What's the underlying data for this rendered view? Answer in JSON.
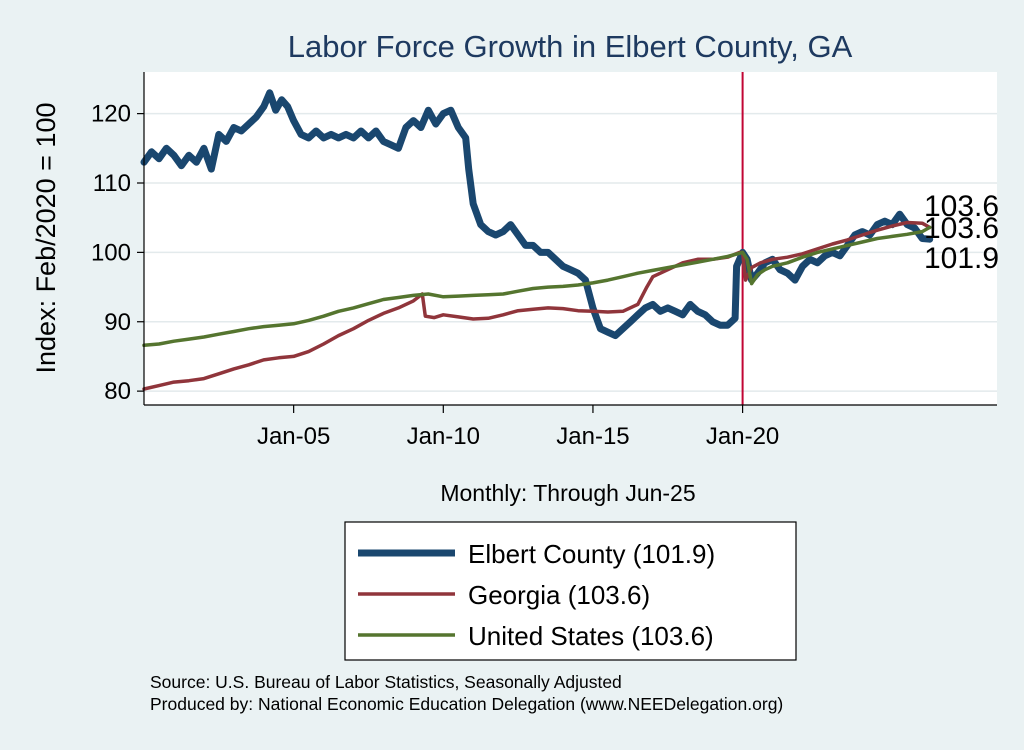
{
  "chart_data": {
    "type": "line",
    "title": "Labor Force Growth in Elbert  County, GA",
    "ylabel": "Index: Feb/2020 = 100",
    "xlabel": "Monthly: Through Jun-25",
    "ylim": [
      78,
      126
    ],
    "xlim": [
      2000.0,
      2028.5
    ],
    "yticks": [
      80,
      90,
      100,
      110,
      120
    ],
    "xticks": [
      {
        "label": "Jan-05",
        "value": 2005.0
      },
      {
        "label": "Jan-10",
        "value": 2010.0
      },
      {
        "label": "Jan-15",
        "value": 2015.0
      },
      {
        "label": "Jan-20",
        "value": 2020.0
      }
    ],
    "vline": 2020.0,
    "grid": "horizontal",
    "legend_position": "bottom",
    "series": [
      {
        "name": "Elbert  County (101.9)",
        "color": "#1a476f",
        "width": 7,
        "end_label": "101.9",
        "points": [
          [
            2000.0,
            113
          ],
          [
            2000.25,
            114.5
          ],
          [
            2000.5,
            113.5
          ],
          [
            2000.75,
            115
          ],
          [
            2001.0,
            114
          ],
          [
            2001.25,
            112.5
          ],
          [
            2001.5,
            114
          ],
          [
            2001.75,
            113
          ],
          [
            2002.0,
            115
          ],
          [
            2002.25,
            112
          ],
          [
            2002.5,
            117
          ],
          [
            2002.75,
            116
          ],
          [
            2003.0,
            118
          ],
          [
            2003.25,
            117.5
          ],
          [
            2003.5,
            118.5
          ],
          [
            2003.75,
            119.5
          ],
          [
            2004.0,
            121
          ],
          [
            2004.2,
            123
          ],
          [
            2004.4,
            120.5
          ],
          [
            2004.6,
            122
          ],
          [
            2004.8,
            121
          ],
          [
            2005.0,
            119
          ],
          [
            2005.25,
            117
          ],
          [
            2005.5,
            116.5
          ],
          [
            2005.75,
            117.5
          ],
          [
            2006.0,
            116.5
          ],
          [
            2006.25,
            117
          ],
          [
            2006.5,
            116.5
          ],
          [
            2006.75,
            117
          ],
          [
            2007.0,
            116.5
          ],
          [
            2007.25,
            117.5
          ],
          [
            2007.5,
            116.5
          ],
          [
            2007.75,
            117.5
          ],
          [
            2008.0,
            116
          ],
          [
            2008.25,
            115.5
          ],
          [
            2008.5,
            115
          ],
          [
            2008.75,
            118
          ],
          [
            2009.0,
            119
          ],
          [
            2009.25,
            118
          ],
          [
            2009.5,
            120.5
          ],
          [
            2009.75,
            118.5
          ],
          [
            2010.0,
            120
          ],
          [
            2010.25,
            120.5
          ],
          [
            2010.5,
            118
          ],
          [
            2010.75,
            116.5
          ],
          [
            2010.85,
            112
          ],
          [
            2011.0,
            107
          ],
          [
            2011.25,
            104
          ],
          [
            2011.5,
            103
          ],
          [
            2011.75,
            102.5
          ],
          [
            2012.0,
            103
          ],
          [
            2012.25,
            104
          ],
          [
            2012.5,
            102.5
          ],
          [
            2012.75,
            101
          ],
          [
            2013.0,
            101
          ],
          [
            2013.25,
            100
          ],
          [
            2013.5,
            100
          ],
          [
            2013.75,
            99
          ],
          [
            2014.0,
            98
          ],
          [
            2014.25,
            97.5
          ],
          [
            2014.5,
            97
          ],
          [
            2014.75,
            96
          ],
          [
            2015.0,
            92
          ],
          [
            2015.25,
            89
          ],
          [
            2015.5,
            88.5
          ],
          [
            2015.75,
            88
          ],
          [
            2016.0,
            89
          ],
          [
            2016.25,
            90
          ],
          [
            2016.5,
            91
          ],
          [
            2016.75,
            92
          ],
          [
            2017.0,
            92.5
          ],
          [
            2017.25,
            91.5
          ],
          [
            2017.5,
            92
          ],
          [
            2017.75,
            91.5
          ],
          [
            2018.0,
            91
          ],
          [
            2018.25,
            92.5
          ],
          [
            2018.5,
            91.5
          ],
          [
            2018.75,
            91
          ],
          [
            2019.0,
            90
          ],
          [
            2019.25,
            89.5
          ],
          [
            2019.5,
            89.5
          ],
          [
            2019.75,
            90.5
          ],
          [
            2019.8,
            98
          ],
          [
            2020.0,
            100
          ],
          [
            2020.15,
            99
          ],
          [
            2020.3,
            96
          ],
          [
            2020.5,
            97
          ],
          [
            2020.75,
            98.5
          ],
          [
            2021.0,
            99
          ],
          [
            2021.25,
            97.5
          ],
          [
            2021.5,
            97
          ],
          [
            2021.75,
            96
          ],
          [
            2022.0,
            98
          ],
          [
            2022.25,
            99
          ],
          [
            2022.5,
            98.5
          ],
          [
            2022.75,
            99.5
          ],
          [
            2023.0,
            100
          ],
          [
            2023.25,
            99.5
          ],
          [
            2023.5,
            101
          ],
          [
            2023.75,
            102.5
          ],
          [
            2024.0,
            103
          ],
          [
            2024.25,
            102.5
          ],
          [
            2024.5,
            104
          ],
          [
            2024.75,
            104.5
          ],
          [
            2025.0,
            104
          ],
          [
            2025.25,
            105.5
          ],
          [
            2025.5,
            104
          ],
          [
            2025.75,
            103.5
          ],
          [
            2026.0,
            102
          ],
          [
            2026.25,
            101.9
          ]
        ]
      },
      {
        "name": "Georgia (103.6)",
        "color": "#90353b",
        "width": 3.5,
        "end_label": "103.6",
        "points": [
          [
            2000.0,
            80.3
          ],
          [
            2000.5,
            80.8
          ],
          [
            2001.0,
            81.3
          ],
          [
            2001.5,
            81.5
          ],
          [
            2002.0,
            81.8
          ],
          [
            2002.5,
            82.5
          ],
          [
            2003.0,
            83.2
          ],
          [
            2003.5,
            83.8
          ],
          [
            2004.0,
            84.5
          ],
          [
            2004.5,
            84.8
          ],
          [
            2005.0,
            85.0
          ],
          [
            2005.5,
            85.7
          ],
          [
            2006.0,
            86.8
          ],
          [
            2006.5,
            88.0
          ],
          [
            2007.0,
            89.0
          ],
          [
            2007.5,
            90.2
          ],
          [
            2008.0,
            91.2
          ],
          [
            2008.5,
            92.0
          ],
          [
            2009.0,
            93.0
          ],
          [
            2009.3,
            94.0
          ],
          [
            2009.4,
            90.8
          ],
          [
            2009.7,
            90.6
          ],
          [
            2010.0,
            91.0
          ],
          [
            2010.5,
            90.7
          ],
          [
            2011.0,
            90.4
          ],
          [
            2011.5,
            90.5
          ],
          [
            2012.0,
            91.0
          ],
          [
            2012.5,
            91.6
          ],
          [
            2013.0,
            91.8
          ],
          [
            2013.5,
            92.0
          ],
          [
            2014.0,
            91.9
          ],
          [
            2014.5,
            91.6
          ],
          [
            2015.0,
            91.5
          ],
          [
            2015.5,
            91.4
          ],
          [
            2016.0,
            91.5
          ],
          [
            2016.5,
            92.5
          ],
          [
            2016.8,
            95.0
          ],
          [
            2017.0,
            96.5
          ],
          [
            2017.5,
            97.5
          ],
          [
            2018.0,
            98.5
          ],
          [
            2018.5,
            99.0
          ],
          [
            2019.0,
            99.0
          ],
          [
            2019.5,
            99.3
          ],
          [
            2019.9,
            100.0
          ],
          [
            2020.0,
            100.0
          ],
          [
            2020.1,
            96.0
          ],
          [
            2020.3,
            97.8
          ],
          [
            2020.6,
            98.5
          ],
          [
            2021.0,
            99.0
          ],
          [
            2021.5,
            99.3
          ],
          [
            2022.0,
            99.8
          ],
          [
            2022.5,
            100.5
          ],
          [
            2023.0,
            101.2
          ],
          [
            2023.5,
            101.8
          ],
          [
            2024.0,
            102.5
          ],
          [
            2024.5,
            103.2
          ],
          [
            2025.0,
            103.8
          ],
          [
            2025.5,
            104.3
          ],
          [
            2026.0,
            104.2
          ],
          [
            2026.25,
            103.6
          ]
        ]
      },
      {
        "name": "United States (103.6)",
        "color": "#55752f",
        "width": 3.5,
        "end_label": "103.6",
        "points": [
          [
            2000.0,
            86.6
          ],
          [
            2000.5,
            86.8
          ],
          [
            2001.0,
            87.2
          ],
          [
            2001.5,
            87.5
          ],
          [
            2002.0,
            87.8
          ],
          [
            2002.5,
            88.2
          ],
          [
            2003.0,
            88.6
          ],
          [
            2003.5,
            89.0
          ],
          [
            2004.0,
            89.3
          ],
          [
            2004.5,
            89.5
          ],
          [
            2005.0,
            89.7
          ],
          [
            2005.5,
            90.2
          ],
          [
            2006.0,
            90.8
          ],
          [
            2006.5,
            91.5
          ],
          [
            2007.0,
            92.0
          ],
          [
            2007.5,
            92.6
          ],
          [
            2008.0,
            93.2
          ],
          [
            2008.5,
            93.5
          ],
          [
            2009.0,
            93.8
          ],
          [
            2009.5,
            94.0
          ],
          [
            2010.0,
            93.6
          ],
          [
            2010.5,
            93.7
          ],
          [
            2011.0,
            93.8
          ],
          [
            2011.5,
            93.9
          ],
          [
            2012.0,
            94.0
          ],
          [
            2012.5,
            94.4
          ],
          [
            2013.0,
            94.8
          ],
          [
            2013.5,
            95.0
          ],
          [
            2014.0,
            95.1
          ],
          [
            2014.5,
            95.3
          ],
          [
            2015.0,
            95.6
          ],
          [
            2015.5,
            96.0
          ],
          [
            2016.0,
            96.5
          ],
          [
            2016.5,
            97.0
          ],
          [
            2017.0,
            97.4
          ],
          [
            2017.5,
            97.8
          ],
          [
            2018.0,
            98.2
          ],
          [
            2018.5,
            98.6
          ],
          [
            2019.0,
            99.0
          ],
          [
            2019.5,
            99.4
          ],
          [
            2020.0,
            100.0
          ],
          [
            2020.15,
            99.0
          ],
          [
            2020.3,
            95.5
          ],
          [
            2020.5,
            96.8
          ],
          [
            2020.75,
            97.5
          ],
          [
            2021.0,
            98.0
          ],
          [
            2021.5,
            98.5
          ],
          [
            2022.0,
            99.3
          ],
          [
            2022.5,
            100.0
          ],
          [
            2023.0,
            100.5
          ],
          [
            2023.5,
            101.0
          ],
          [
            2024.0,
            101.5
          ],
          [
            2024.5,
            102.0
          ],
          [
            2025.0,
            102.3
          ],
          [
            2025.5,
            102.6
          ],
          [
            2026.0,
            103.0
          ],
          [
            2026.25,
            103.6
          ]
        ]
      }
    ]
  },
  "footer": {
    "source": "Source: U.S. Bureau of Labor Statistics, Seasonally Adjusted",
    "producer": "Produced by: National Economic Education Delegation (www.NEEDelegation.org)"
  }
}
